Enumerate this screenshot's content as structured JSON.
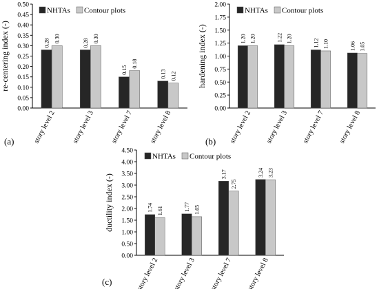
{
  "chart_data": [
    {
      "type": "bar",
      "panel_label": "(a)",
      "ylabel": "re-centering index (-)",
      "ylim": [
        0,
        0.5
      ],
      "yticks": [
        "0.00",
        "0.05",
        "0.10",
        "0.15",
        "0.20",
        "0.25",
        "0.30",
        "0.35",
        "0.40",
        "0.45",
        "0.50"
      ],
      "categories": [
        "story level 2",
        "story level 3",
        "story level 7",
        "story level 8"
      ],
      "series": [
        {
          "name": "NHTAs",
          "color": "#262626",
          "values": [
            0.28,
            0.28,
            0.15,
            0.13
          ],
          "labels": [
            "0.28",
            "0.28",
            "0.15",
            "0.13"
          ]
        },
        {
          "name": "Contour plots",
          "color": "#c8c8c8",
          "values": [
            0.3,
            0.3,
            0.18,
            0.12
          ],
          "labels": [
            "0.30",
            "0.30",
            "0.18",
            "0.12"
          ]
        }
      ],
      "grid": false,
      "legend": "top"
    },
    {
      "type": "bar",
      "panel_label": "(b)",
      "ylabel": "hardening index (-)",
      "ylim": [
        0,
        2.0
      ],
      "yticks": [
        "0.00",
        "0.25",
        "0.50",
        "0.75",
        "1.00",
        "1.25",
        "1.50",
        "1.75",
        "2.00"
      ],
      "categories": [
        "story level 2",
        "story level 3",
        "story level 7",
        "story level 8"
      ],
      "series": [
        {
          "name": "NHTAs",
          "color": "#262626",
          "values": [
            1.2,
            1.22,
            1.12,
            1.06
          ],
          "labels": [
            "1.20",
            "1.22",
            "1.12",
            "1.06"
          ]
        },
        {
          "name": "Contour plots",
          "color": "#c8c8c8",
          "values": [
            1.2,
            1.2,
            1.1,
            1.05
          ],
          "labels": [
            "1.20",
            "1.20",
            "1.10",
            "1.05"
          ]
        }
      ],
      "grid": false,
      "legend": "top"
    },
    {
      "type": "bar",
      "panel_label": "(c)",
      "ylabel": "ductility index (-)",
      "ylim": [
        0,
        4.5
      ],
      "yticks": [
        "0.00",
        "0.50",
        "1.00",
        "1.50",
        "2.00",
        "2.50",
        "3.00",
        "3.50",
        "4.00",
        "4.50"
      ],
      "categories": [
        "story level 2",
        "story level 3",
        "story level 7",
        "story level 8"
      ],
      "series": [
        {
          "name": "NHTAs",
          "color": "#262626",
          "values": [
            1.74,
            1.77,
            3.17,
            3.24
          ],
          "labels": [
            "1.74",
            "1.77",
            "3.17",
            "3.24"
          ]
        },
        {
          "name": "Contour plots",
          "color": "#c8c8c8",
          "values": [
            1.61,
            1.65,
            2.75,
            3.23
          ],
          "labels": [
            "1.61",
            "1.65",
            "2.75",
            "3.23"
          ]
        }
      ],
      "grid": false,
      "legend": "top"
    }
  ]
}
